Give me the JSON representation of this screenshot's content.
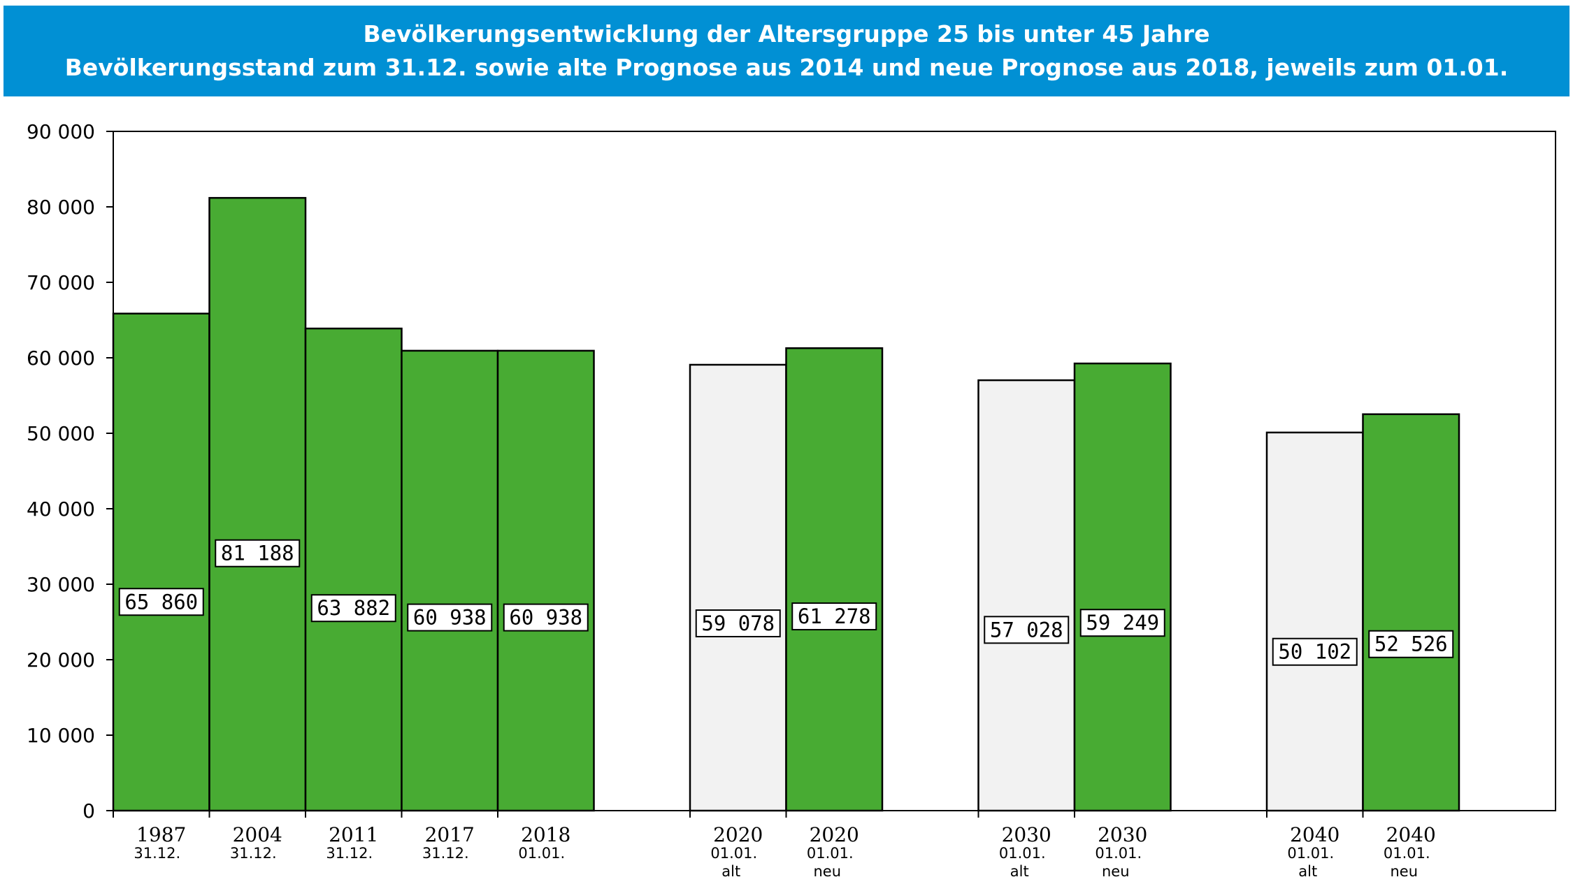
{
  "chart_data": {
    "type": "bar",
    "title": "Bevölkerungsentwicklung der Altersgruppe 25 bis unter 45 Jahre",
    "subtitle": "Bevölkerungsstand zum 31.12. sowie alte Prognose aus 2014 und neue Prognose aus 2018,  jeweils zum 01.01.",
    "ylim": [
      0,
      90000
    ],
    "yticks": [
      0,
      10000,
      20000,
      30000,
      40000,
      50000,
      60000,
      70000,
      80000,
      90000
    ],
    "ytick_labels": [
      "0",
      "10 000",
      "20 000",
      "30 000",
      "40 000",
      "50 000",
      "60 000",
      "70 000",
      "80 000",
      "90 000"
    ],
    "grid": false,
    "colors": {
      "green": "#48ab33",
      "grey": "#f2f2f2",
      "title_bg": "#0190d4"
    },
    "bars": [
      {
        "year": "1987",
        "date": "31.12.",
        "tag": "",
        "value": 65860,
        "label": "65 860",
        "style": "green",
        "slot": 0
      },
      {
        "year": "2004",
        "date": "31.12.",
        "tag": "",
        "value": 81188,
        "label": "81 188",
        "style": "green",
        "slot": 1
      },
      {
        "year": "2011",
        "date": "31.12.",
        "tag": "",
        "value": 63882,
        "label": "63 882",
        "style": "green",
        "slot": 2
      },
      {
        "year": "2017",
        "date": "31.12.",
        "tag": "",
        "value": 60938,
        "label": "60 938",
        "style": "green",
        "slot": 3
      },
      {
        "year": "2018",
        "date": "01.01.",
        "tag": "",
        "value": 60938,
        "label": "60 938",
        "style": "green",
        "slot": 4
      },
      {
        "year": "2020",
        "date": "01.01.",
        "tag": "alt",
        "value": 59078,
        "label": "59 078",
        "style": "grey",
        "slot": 6
      },
      {
        "year": "2020",
        "date": "01.01.",
        "tag": "neu",
        "value": 61278,
        "label": "61 278",
        "style": "green",
        "slot": 7
      },
      {
        "year": "2030",
        "date": "01.01.",
        "tag": "alt",
        "value": 57028,
        "label": "57 028",
        "style": "grey",
        "slot": 9
      },
      {
        "year": "2030",
        "date": "01.01.",
        "tag": "neu",
        "value": 59249,
        "label": "59 249",
        "style": "green",
        "slot": 10
      },
      {
        "year": "2040",
        "date": "01.01.",
        "tag": "alt",
        "value": 50102,
        "label": "50 102",
        "style": "grey",
        "slot": 12
      },
      {
        "year": "2040",
        "date": "01.01.",
        "tag": "neu",
        "value": 52526,
        "label": "52 526",
        "style": "green",
        "slot": 13
      }
    ]
  }
}
